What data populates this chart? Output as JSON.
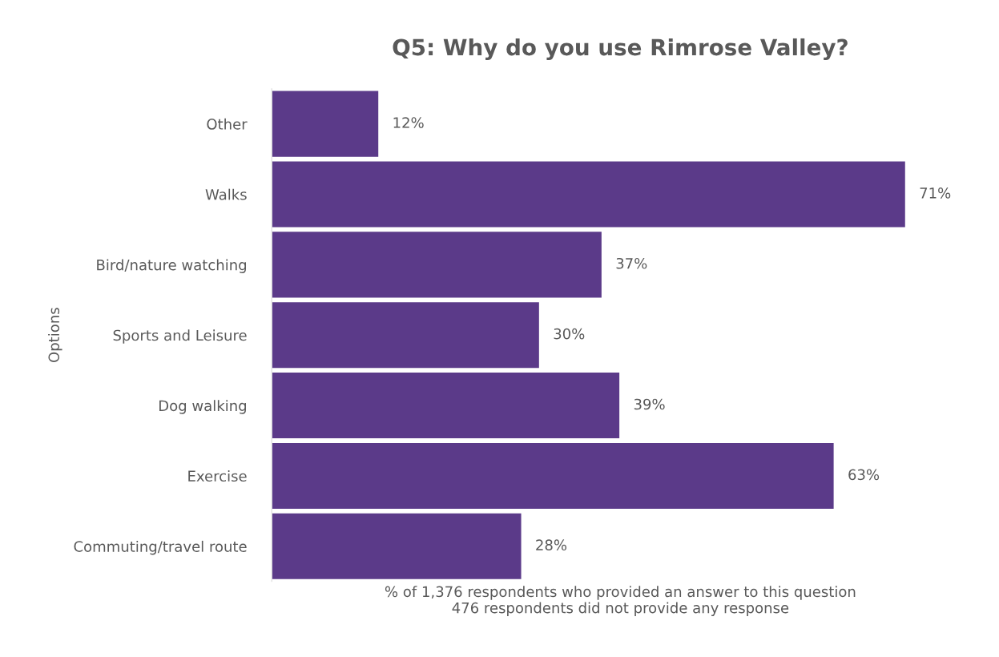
{
  "chart_data": {
    "type": "bar",
    "orientation": "horizontal",
    "title": "Q5: Why do you use Rimrose Valley?",
    "xlabel": "% of 1,376 respondents who provided an answer to this question\n476 respondents did not provide any response",
    "ylabel": "Options",
    "categories": [
      "Other",
      "Walks",
      "Bird/nature watching",
      "Sports and Leisure",
      "Dog walking",
      "Exercise",
      "Commuting/travel route"
    ],
    "values": [
      12,
      71,
      37,
      30,
      39,
      63,
      28
    ],
    "value_labels": [
      "12%",
      "71%",
      "37%",
      "30%",
      "39%",
      "63%",
      "28%"
    ],
    "color": "#5b3a89",
    "grid": false,
    "legend": false,
    "tick_labels": "y"
  }
}
